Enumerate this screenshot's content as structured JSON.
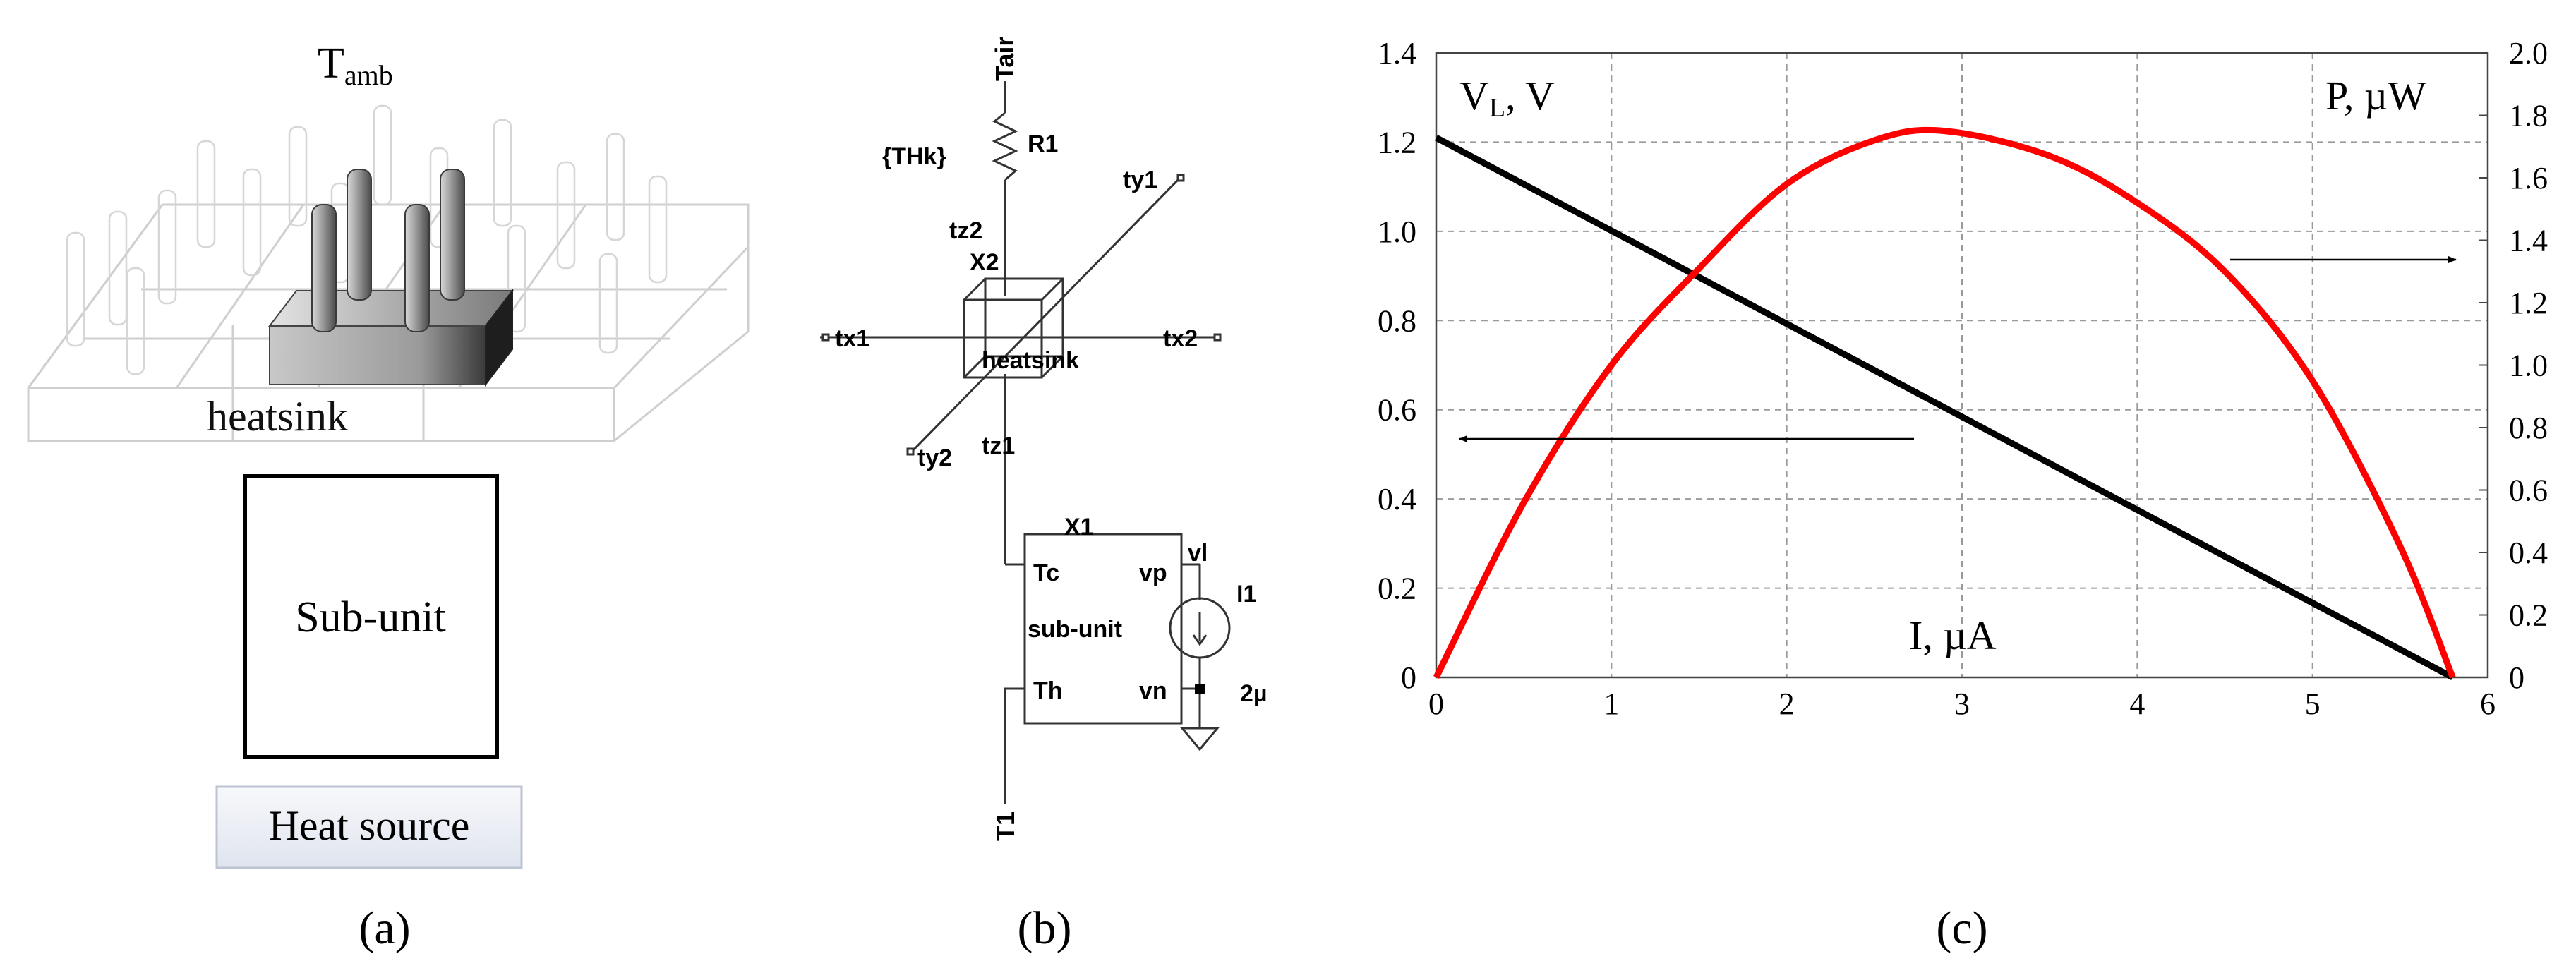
{
  "panel_a": {
    "top_label_main": "T",
    "top_label_sub": "amb",
    "heatsink_label": "heatsink",
    "subunit_label": "Sub-unit",
    "heat_source_label": "Heat source",
    "caption": "(a)"
  },
  "panel_b": {
    "tair": "Tair",
    "thk": "{THk}",
    "r1": "R1",
    "tz2": "tz2",
    "x2": "X2",
    "ty1": "ty1",
    "tx1": "tx1",
    "tx2": "tx2",
    "heatsink": "heatsink",
    "ty2": "ty2",
    "tz1": "tz1",
    "x1": "X1",
    "tc": "Tc",
    "vp": "vp",
    "vl": "vl",
    "i1": "I1",
    "subunit": "sub-unit",
    "th": "Th",
    "vn": "vn",
    "current_value": "2µ",
    "t1": "T1",
    "caption": "(b)"
  },
  "panel_c": {
    "caption": "(c)",
    "left_axis_label_main": "V",
    "left_axis_label_sub": "L",
    "left_axis_label_rest": ", V",
    "right_axis_label": "P, µW",
    "x_axis_label": "I, µA",
    "colors": {
      "voltage": "#000000",
      "power": "#ff0000",
      "grid": "#9a9a9a"
    }
  },
  "chart_data": {
    "type": "line",
    "xlabel": "I, µA",
    "ylabel": "V_L, V",
    "y2label": "P, µW",
    "xlim": [
      0,
      6
    ],
    "ylim": [
      0,
      1.4
    ],
    "y2lim": [
      0,
      2.0
    ],
    "x_ticks": [
      "0",
      "1",
      "2",
      "3",
      "4",
      "5",
      "6"
    ],
    "y_ticks": [
      "0",
      "0.2",
      "0.4",
      "0.6",
      "0.8",
      "1.0",
      "1.2",
      "1.4"
    ],
    "y2_ticks": [
      "0",
      "0.2",
      "0.4",
      "0.6",
      "0.8",
      "1.0",
      "1.2",
      "1.4",
      "1.6",
      "1.8",
      "2.0"
    ],
    "grid": true,
    "series": [
      {
        "axis": "left",
        "color": "#000000",
        "x": [
          0,
          5.8
        ],
        "y": [
          1.21,
          0
        ]
      },
      {
        "axis": "right",
        "color": "#ff0000",
        "x": [
          0,
          0.5,
          1.0,
          1.5,
          2.0,
          2.5,
          2.9,
          3.5,
          4.0,
          4.5,
          5.0,
          5.5,
          5.8
        ],
        "y": [
          0,
          0.56,
          1.0,
          1.31,
          1.58,
          1.72,
          1.75,
          1.67,
          1.52,
          1.3,
          0.95,
          0.42,
          0
        ]
      }
    ]
  }
}
